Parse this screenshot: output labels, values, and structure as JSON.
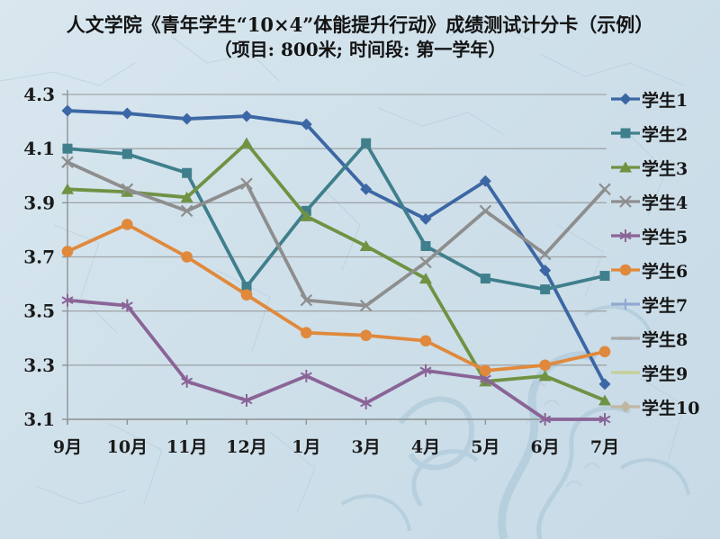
{
  "title": {
    "line1": "人文学院《青年学生“10×4”体能提升行动》成绩测试计分卡（示例）",
    "line2": "（项目: 800米; 时间段: 第一学年）"
  },
  "chart_data": {
    "type": "line",
    "categories": [
      "9月",
      "10月",
      "11月",
      "12月",
      "1月",
      "3月",
      "4月",
      "5月",
      "6月",
      "7月"
    ],
    "y_ticks": [
      4.3,
      4.1,
      3.9,
      3.7,
      3.5,
      3.3,
      3.1
    ],
    "ylim": [
      3.1,
      4.3
    ],
    "grid": true,
    "legend_position": "right",
    "series": [
      {
        "name": "学生1",
        "color": "#3c67a4",
        "marker": "diamond",
        "values": [
          4.24,
          4.23,
          4.21,
          4.22,
          4.19,
          3.95,
          3.84,
          3.98,
          3.65,
          3.23
        ]
      },
      {
        "name": "学生2",
        "color": "#3f7f8c",
        "marker": "square",
        "values": [
          4.1,
          4.08,
          4.01,
          3.59,
          3.87,
          4.12,
          3.74,
          3.62,
          3.58,
          3.63
        ]
      },
      {
        "name": "学生3",
        "color": "#6f9243",
        "marker": "triangle",
        "values": [
          3.95,
          3.94,
          3.92,
          4.12,
          3.85,
          3.74,
          3.62,
          3.24,
          3.26,
          3.17
        ]
      },
      {
        "name": "学生4",
        "color": "#8e8e8e",
        "marker": "x",
        "values": [
          4.05,
          3.95,
          3.87,
          3.97,
          3.54,
          3.52,
          3.68,
          3.87,
          3.71,
          3.95
        ]
      },
      {
        "name": "学生5",
        "color": "#8a6497",
        "marker": "star",
        "values": [
          3.54,
          3.52,
          3.24,
          3.17,
          3.26,
          3.16,
          3.28,
          3.25,
          3.1,
          3.1
        ]
      },
      {
        "name": "学生6",
        "color": "#e0893c",
        "marker": "circle",
        "values": [
          3.72,
          3.82,
          3.7,
          3.56,
          3.42,
          3.41,
          3.39,
          3.28,
          3.3,
          3.35
        ]
      },
      {
        "name": "学生7",
        "color": "#92a9d1",
        "marker": "plus",
        "values": []
      },
      {
        "name": "学生8",
        "color": "#a7a9a9",
        "marker": "dash",
        "values": []
      },
      {
        "name": "学生9",
        "color": "#c5cf96",
        "marker": "dash",
        "values": []
      },
      {
        "name": "学生10",
        "color": "#c0b7a3",
        "marker": "diamond",
        "values": []
      }
    ]
  }
}
